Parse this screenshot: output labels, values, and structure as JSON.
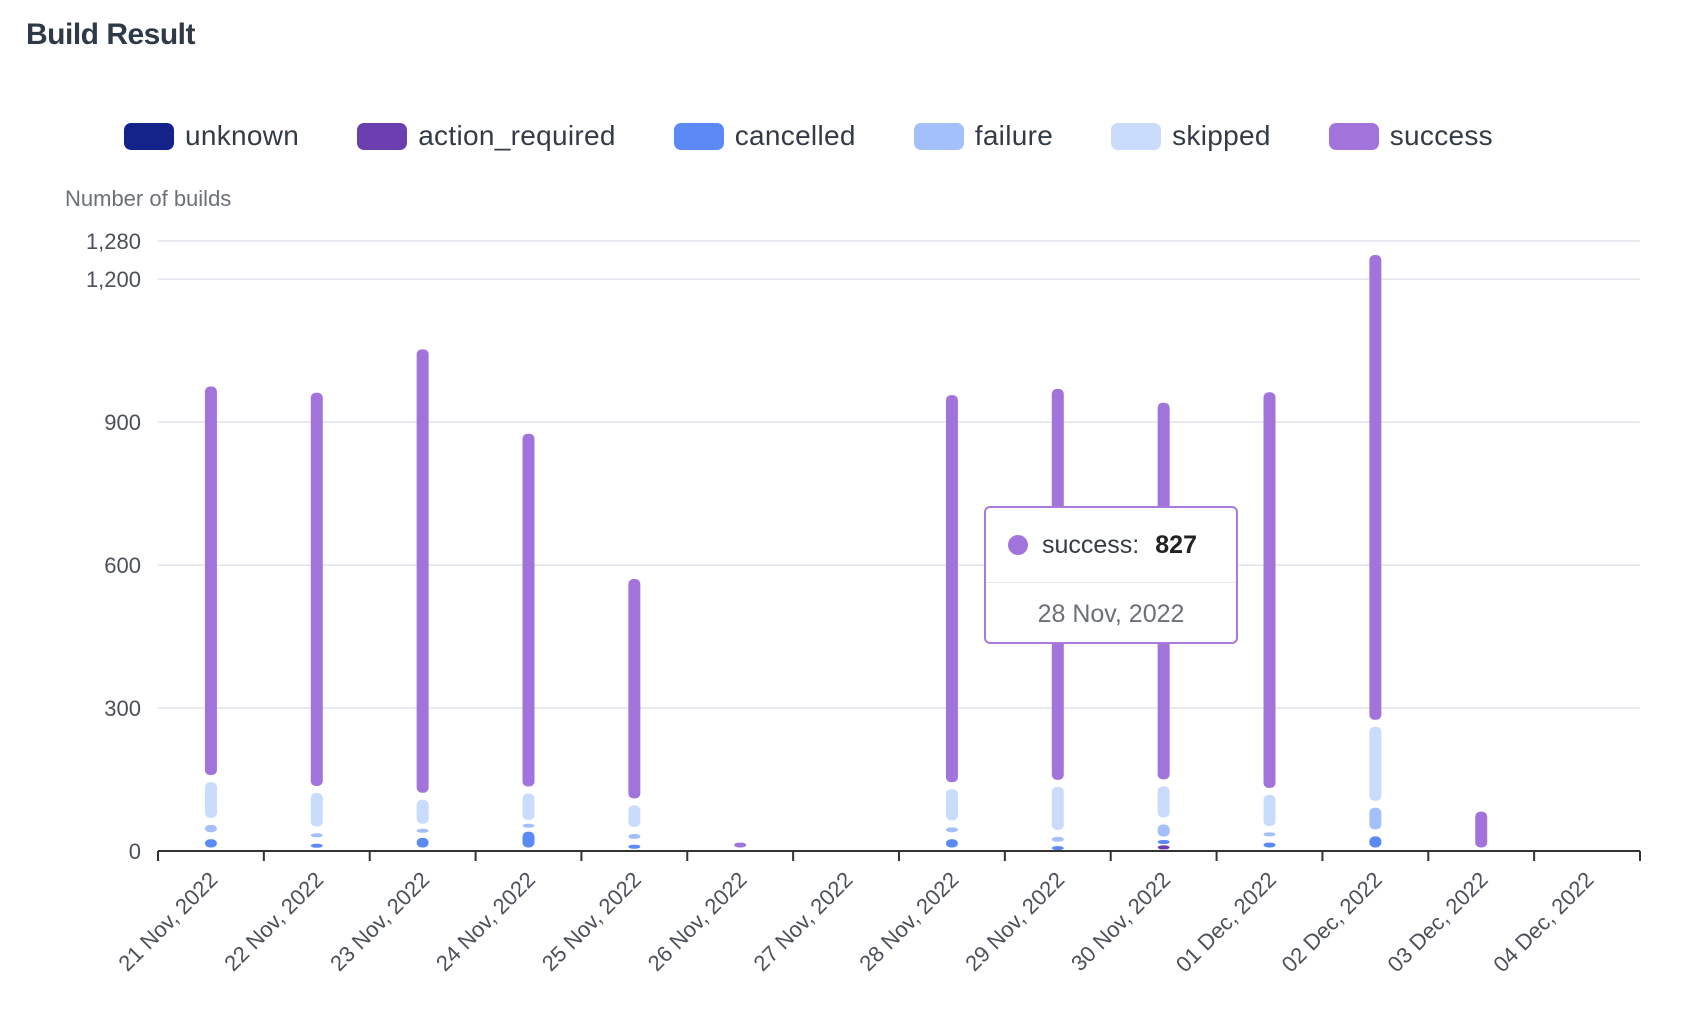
{
  "title": "Build Result",
  "legend": [
    {
      "label": "unknown",
      "color": "#13238a"
    },
    {
      "label": "action_required",
      "color": "#6b3fb0"
    },
    {
      "label": "cancelled",
      "color": "#5b8af7"
    },
    {
      "label": "failure",
      "color": "#a3c0fb"
    },
    {
      "label": "skipped",
      "color": "#c9dcfc"
    },
    {
      "label": "success",
      "color": "#a274db"
    }
  ],
  "tooltip": {
    "series": "success:",
    "value": "827",
    "date": "28 Nov, 2022",
    "color": "#a274db"
  },
  "chart_data": {
    "type": "bar",
    "stacked": true,
    "ylabel": "Number of builds",
    "ylim": [
      0,
      1280
    ],
    "yticks": [
      0,
      300,
      600,
      900,
      1200,
      1280
    ],
    "ytick_labels": [
      "0",
      "300",
      "600",
      "900",
      "1,200",
      "1,280"
    ],
    "grid": true,
    "legend_position": "top",
    "categories": [
      "21 Nov, 2022",
      "22 Nov, 2022",
      "23 Nov, 2022",
      "24 Nov, 2022",
      "25 Nov, 2022",
      "26 Nov, 2022",
      "27 Nov, 2022",
      "28 Nov, 2022",
      "29 Nov, 2022",
      "30 Nov, 2022",
      "01 Dec, 2022",
      "02 Dec, 2022",
      "03 Dec, 2022",
      "04 Dec, 2022"
    ],
    "series": [
      {
        "name": "unknown",
        "values": [
          0,
          0,
          0,
          0,
          0,
          0,
          0,
          0,
          0,
          0,
          0,
          0,
          0,
          0
        ]
      },
      {
        "name": "action_required",
        "values": [
          0,
          0,
          0,
          0,
          0,
          0,
          0,
          0,
          0,
          15,
          0,
          0,
          0,
          0
        ]
      },
      {
        "name": "cancelled",
        "values": [
          32,
          22,
          35,
          48,
          18,
          0,
          0,
          32,
          12,
          8,
          25,
          38,
          0,
          0
        ]
      },
      {
        "name": "failure",
        "values": [
          30,
          22,
          15,
          10,
          25,
          0,
          0,
          25,
          25,
          40,
          20,
          60,
          0,
          0
        ]
      },
      {
        "name": "skipped",
        "values": [
          90,
          85,
          65,
          70,
          60,
          0,
          0,
          80,
          105,
          80,
          80,
          170,
          0,
          0
        ]
      },
      {
        "name": "success",
        "values": [
          830,
          840,
          945,
          755,
          475,
          25,
          0,
          827,
          835,
          805,
          845,
          990,
          90,
          0
        ]
      }
    ]
  }
}
